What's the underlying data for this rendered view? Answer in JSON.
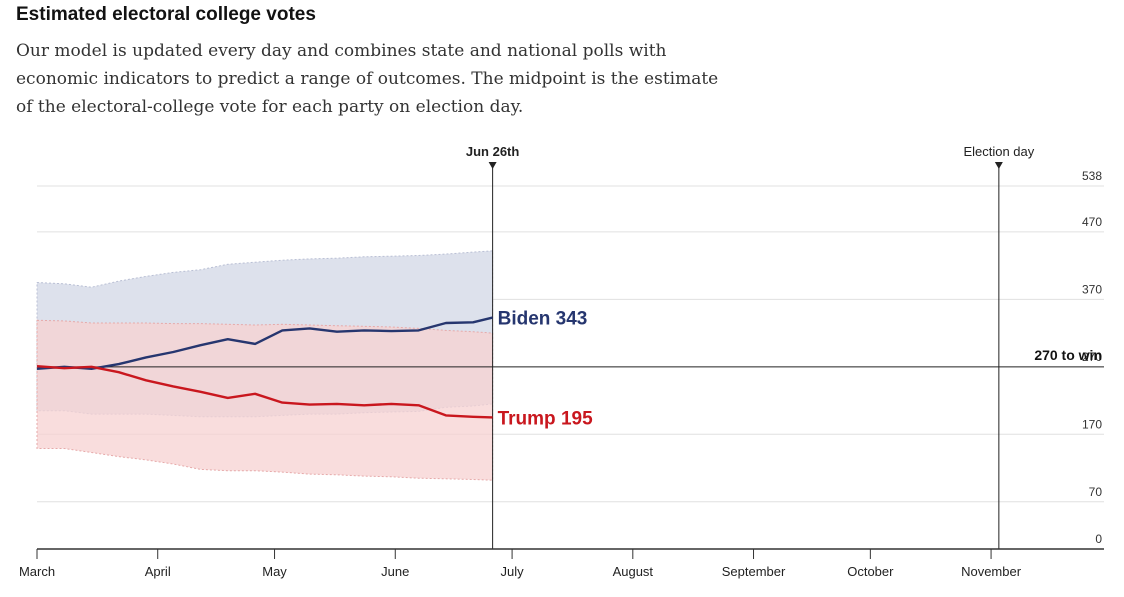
{
  "header": {
    "title": "Estimated electoral college votes",
    "subtitle": "Our model is updated every day and combines state and national polls with economic indicators to predict a range of outcomes. The midpoint is the estimate of the electoral-college vote for each party on election day."
  },
  "colors": {
    "biden": "#26366f",
    "trump": "#c9171e",
    "biden_band": "#dde1ec",
    "trump_band": "#f7d2d2",
    "overlap_band": "#e2c7d0",
    "grid": "#e0e0e0",
    "axis": "#333333"
  },
  "chart_data": {
    "type": "line",
    "ylim": [
      0,
      538
    ],
    "y_ticks": [
      0,
      70,
      170,
      270,
      370,
      470,
      538
    ],
    "xlim": [
      "2020-03-01",
      "2020-11-30"
    ],
    "x_ticks": [
      {
        "date": "2020-03-01",
        "label": "March"
      },
      {
        "date": "2020-04-01",
        "label": "April"
      },
      {
        "date": "2020-05-01",
        "label": "May"
      },
      {
        "date": "2020-06-01",
        "label": "June"
      },
      {
        "date": "2020-07-01",
        "label": "July"
      },
      {
        "date": "2020-08-01",
        "label": "August"
      },
      {
        "date": "2020-09-01",
        "label": "September"
      },
      {
        "date": "2020-10-01",
        "label": "October"
      },
      {
        "date": "2020-11-01",
        "label": "November"
      }
    ],
    "markers": [
      {
        "date": "2020-06-26",
        "label": "Jun 26th",
        "bold": true
      },
      {
        "date": "2020-11-03",
        "label": "Election day",
        "bold": false
      }
    ],
    "threshold": {
      "value": 270,
      "label": "270 to win"
    },
    "x": [
      "2020-03-01",
      "2020-03-08",
      "2020-03-15",
      "2020-03-22",
      "2020-03-29",
      "2020-04-05",
      "2020-04-12",
      "2020-04-19",
      "2020-04-26",
      "2020-05-03",
      "2020-05-10",
      "2020-05-17",
      "2020-05-24",
      "2020-05-31",
      "2020-06-07",
      "2020-06-14",
      "2020-06-21",
      "2020-06-26"
    ],
    "series": [
      {
        "name": "Biden",
        "label": "Biden 343",
        "values": [
          267,
          270,
          267,
          274,
          284,
          292,
          302,
          311,
          304,
          324,
          327,
          322,
          324,
          323,
          324,
          335,
          336,
          343
        ],
        "upper": [
          395,
          393,
          388,
          397,
          404,
          410,
          414,
          422,
          425,
          428,
          430,
          431,
          433,
          434,
          435,
          437,
          440,
          442
        ],
        "lower": [
          205,
          205,
          200,
          200,
          200,
          198,
          196,
          196,
          196,
          198,
          200,
          200,
          202,
          203,
          204,
          210,
          212,
          215
        ]
      },
      {
        "name": "Trump",
        "label": "Trump 195",
        "values": [
          271,
          268,
          270,
          262,
          250,
          241,
          233,
          224,
          230,
          217,
          214,
          215,
          213,
          215,
          213,
          198,
          196,
          195
        ],
        "upper": [
          339,
          338,
          335,
          335,
          335,
          334,
          334,
          333,
          332,
          333,
          332,
          331,
          330,
          329,
          327,
          324,
          322,
          320
        ],
        "lower": [
          149,
          149,
          143,
          137,
          132,
          126,
          118,
          116,
          116,
          114,
          111,
          110,
          108,
          107,
          105,
          104,
          103,
          102
        ]
      }
    ]
  }
}
